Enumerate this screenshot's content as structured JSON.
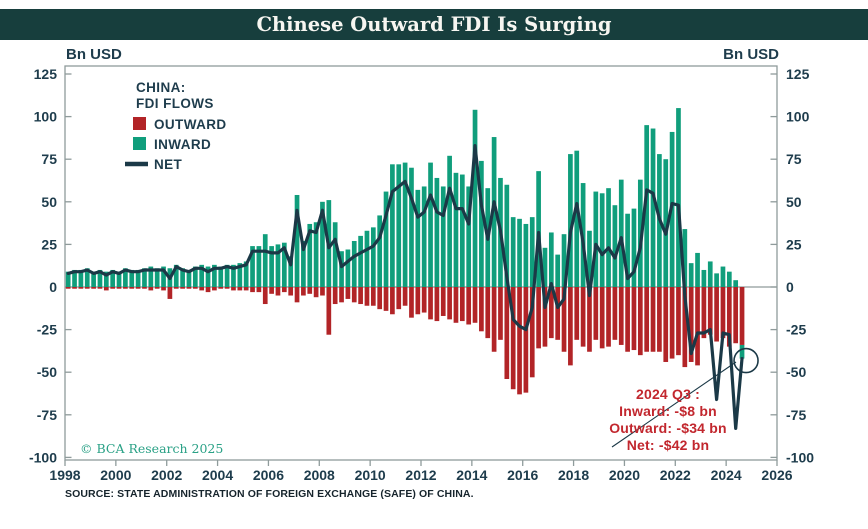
{
  "title": "Chinese Outward FDI Is Surging",
  "axis": {
    "left_unit_label": "Bn USD",
    "right_unit_label": "Bn USD",
    "y_ticks": [
      125,
      100,
      75,
      50,
      25,
      0,
      -25,
      -50,
      -75,
      -100
    ],
    "x_ticks": [
      1998,
      2000,
      2002,
      2004,
      2006,
      2008,
      2010,
      2012,
      2014,
      2016,
      2018,
      2020,
      2022,
      2024,
      2026
    ]
  },
  "legend": {
    "heading_line1": "CHINA:",
    "heading_line2": "FDI FLOWS",
    "items": [
      {
        "label": "OUTWARD",
        "swatch": "square",
        "color": "#b22427"
      },
      {
        "label": "INWARD",
        "swatch": "square",
        "color": "#109e7c"
      },
      {
        "label": "NET",
        "swatch": "line",
        "color": "#1b3947"
      }
    ]
  },
  "annotation": {
    "color": "#c2272e",
    "lines": [
      "2024 Q3 :",
      "Inward: -$8 bn",
      "Outward: -$34 bn",
      "Net: -$42 bn"
    ]
  },
  "copyright": "© BCA Research 2025",
  "source": "SOURCE: STATE ADMINISTRATION OF FOREIGN EXCHANGE (SAFE) OF CHINA.",
  "colors": {
    "title_bar": "#173e3d",
    "outward_red": "#b22427",
    "inward_green": "#109e7c",
    "net_line": "#1b3947",
    "frame_gray": "#8f9b9b",
    "text_dark": "#1e3c4c",
    "annotation_red": "#c2272e",
    "copyright_green": "#2aa186"
  },
  "chart_data": {
    "type": "bar",
    "subtype": "stacked-diverging-bars-with-line",
    "title": "Chinese Outward FDI Is Surging",
    "ylabel": "Bn USD",
    "frequency": "quarterly",
    "start_quarter": "1998Q1",
    "end_quarter": "2024Q3",
    "x_start_year": 1998,
    "x_end_year": 2026,
    "ylim": [
      -100,
      125
    ],
    "grid": false,
    "legend_position": "top-left-inside",
    "series": [
      {
        "name": "INWARD",
        "type": "bar",
        "color": "#109e7c",
        "values": [
          9,
          10,
          10,
          11,
          9,
          10,
          9,
          10,
          9,
          11,
          10,
          10,
          11,
          12,
          11,
          12,
          11,
          13,
          11,
          10,
          12,
          13,
          12,
          13,
          12,
          13,
          13,
          14,
          15,
          24,
          24,
          31,
          24,
          25,
          26,
          18,
          54,
          27,
          37,
          38,
          50,
          51,
          38,
          21,
          22,
          27,
          30,
          33,
          35,
          42,
          56,
          72,
          72,
          73,
          70,
          57,
          59,
          73,
          64,
          59,
          77,
          67,
          66,
          59,
          104,
          74,
          58,
          88,
          64,
          60,
          41,
          40,
          37,
          41,
          68,
          23,
          32,
          19,
          31,
          78,
          80,
          61,
          33,
          56,
          55,
          58,
          48,
          63,
          43,
          46,
          63,
          95,
          93,
          78,
          75,
          91,
          105,
          34,
          14,
          20,
          10,
          15,
          8,
          12,
          9,
          4,
          -8
        ]
      },
      {
        "name": "OUTWARD",
        "type": "bar",
        "color": "#b22427",
        "values": [
          -1,
          -1,
          -1,
          -1,
          -1,
          -1,
          -2,
          -1,
          -1,
          -1,
          -1,
          -1,
          -1,
          -2,
          -1,
          -2,
          -7,
          -1,
          -1,
          -1,
          -1,
          -2,
          -3,
          -2,
          -1,
          -1,
          -2,
          -2,
          -2,
          -3,
          -3,
          -10,
          -4,
          -5,
          -3,
          -5,
          -9,
          -5,
          -4,
          -6,
          -5,
          -28,
          -10,
          -9,
          -7,
          -9,
          -10,
          -11,
          -11,
          -13,
          -14,
          -16,
          -13,
          -11,
          -18,
          -16,
          -15,
          -19,
          -20,
          -17,
          -19,
          -21,
          -20,
          -22,
          -21,
          -26,
          -30,
          -38,
          -31,
          -54,
          -60,
          -63,
          -62,
          -53,
          -36,
          -35,
          -30,
          -31,
          -38,
          -46,
          -31,
          -35,
          -38,
          -31,
          -36,
          -35,
          -31,
          -34,
          -38,
          -37,
          -40,
          -38,
          -38,
          -38,
          -44,
          -42,
          -40,
          -47,
          -44,
          -46,
          -30,
          -28,
          -32,
          -30,
          -35,
          -33,
          -34
        ]
      },
      {
        "name": "NET",
        "type": "line",
        "color": "#1b3947",
        "values": [
          8,
          9,
          9,
          10,
          8,
          9,
          7,
          9,
          8,
          10,
          9,
          9,
          10,
          10,
          10,
          10,
          5,
          12,
          10,
          9,
          11,
          11,
          9,
          11,
          11,
          12,
          11,
          12,
          13,
          21,
          21,
          21,
          20,
          20,
          23,
          13,
          45,
          22,
          33,
          32,
          45,
          23,
          28,
          12,
          15,
          18,
          20,
          22,
          24,
          29,
          42,
          56,
          59,
          62,
          52,
          41,
          44,
          54,
          44,
          42,
          58,
          46,
          46,
          37,
          83,
          48,
          28,
          50,
          33,
          6,
          -19,
          -23,
          -25,
          -12,
          32,
          -12,
          2,
          -12,
          -7,
          32,
          49,
          26,
          -5,
          25,
          19,
          23,
          17,
          29,
          5,
          9,
          23,
          57,
          55,
          40,
          31,
          49,
          48,
          -5,
          -39,
          -27,
          -27,
          -25,
          -66,
          -27,
          -28,
          -83,
          -42
        ]
      }
    ],
    "highlight_circle": {
      "quarter": "2024 Q3",
      "series": "NET",
      "value": -42
    }
  }
}
